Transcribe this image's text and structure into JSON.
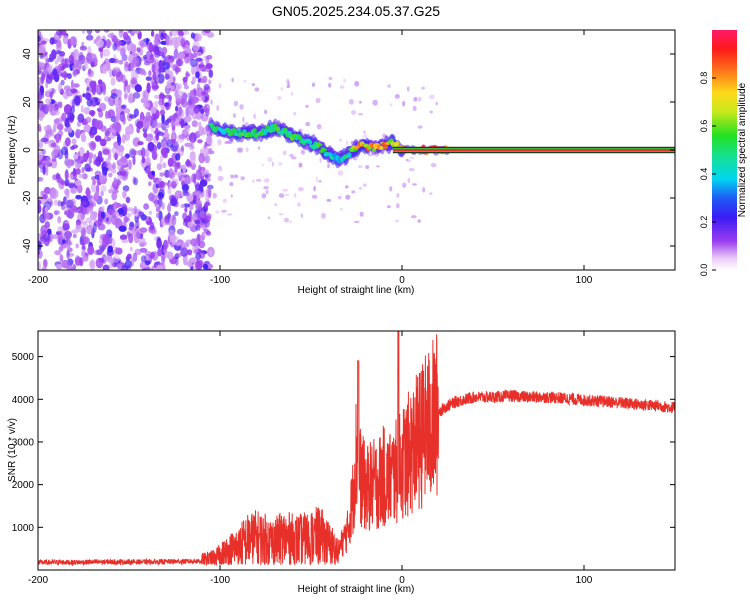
{
  "figure": {
    "title": "GN05.2025.234.05.37.G25"
  },
  "chart_data": [
    {
      "type": "heatmap",
      "xlabel": "Height of straight line (km)",
      "ylabel": "Frequency (Hz)",
      "xlim": [
        -200,
        150
      ],
      "ylim": [
        -50,
        50
      ],
      "x_ticks": [
        "-200",
        "-100",
        "0",
        "100"
      ],
      "y_ticks": [
        "40",
        "20",
        "0",
        "-20",
        "-40"
      ],
      "x_tick_values": [
        -200,
        -100,
        0,
        100
      ],
      "y_tick_values": [
        40,
        20,
        0,
        -20,
        -40
      ],
      "colorbar": {
        "label": "Normalized spectral amplitude",
        "ticks": [
          "0.0",
          "0.2",
          "0.4",
          "0.6",
          "0.8"
        ],
        "tick_values": [
          0.0,
          0.2,
          0.4,
          0.6,
          0.8
        ],
        "range": [
          0,
          1
        ]
      },
      "noise_region_x": [
        -200,
        -105
      ],
      "signal_track": {
        "x": [
          -105,
          -100,
          -90,
          -80,
          -75,
          -70,
          -65,
          -60,
          -55,
          -50,
          -45,
          -40,
          -35,
          -30,
          -25,
          -20,
          -15,
          -10,
          -5,
          0,
          10,
          20,
          150
        ],
        "freq_hz": [
          10,
          8,
          7,
          7,
          8,
          9,
          8,
          6,
          4,
          3,
          1,
          -2,
          -4,
          -2,
          1,
          2,
          1,
          2,
          3,
          0,
          0,
          0,
          0
        ],
        "amplitude": [
          0.5,
          0.55,
          0.55,
          0.6,
          0.55,
          0.6,
          0.55,
          0.6,
          0.55,
          0.5,
          0.6,
          0.5,
          0.45,
          0.5,
          0.8,
          0.85,
          0.8,
          0.85,
          0.8,
          0.85,
          0.95,
          1.0,
          1.0
        ]
      }
    },
    {
      "type": "line",
      "xlabel": "Height of straight line (km)",
      "ylabel": "SNR (10 * v/v)",
      "xlim": [
        -200,
        150
      ],
      "ylim": [
        0,
        5600
      ],
      "x_ticks": [
        "-200",
        "-100",
        "0",
        "100"
      ],
      "y_ticks": [
        "1000",
        "2000",
        "3000",
        "4000",
        "5000"
      ],
      "x_tick_values": [
        -200,
        -100,
        0,
        100
      ],
      "y_tick_values": [
        1000,
        2000,
        3000,
        4000,
        5000
      ],
      "series": [
        {
          "color": "#e8302a",
          "x": [
            -200,
            -180,
            -160,
            -140,
            -120,
            -110,
            -105,
            -100,
            -95,
            -90,
            -85,
            -80,
            -75,
            -70,
            -65,
            -60,
            -55,
            -50,
            -45,
            -40,
            -35,
            -30,
            -27,
            -25,
            -23,
            -20,
            -15,
            -12,
            -10,
            -8,
            -5,
            -3,
            -1,
            0,
            2,
            5,
            10,
            15,
            20,
            25,
            30,
            35,
            40,
            50,
            60,
            70,
            80,
            90,
            100,
            110,
            120,
            130,
            140,
            150
          ],
          "y": [
            180,
            180,
            190,
            190,
            200,
            210,
            240,
            320,
            450,
            550,
            700,
            750,
            700,
            650,
            750,
            700,
            700,
            750,
            800,
            600,
            450,
            900,
            1700,
            2800,
            2200,
            1900,
            2000,
            2100,
            2200,
            2100,
            2200,
            2300,
            2400,
            2500,
            2600,
            2800,
            3100,
            3400,
            3700,
            3850,
            3950,
            4000,
            4050,
            4050,
            4080,
            4050,
            4050,
            4020,
            3980,
            3950,
            3920,
            3880,
            3850,
            3800
          ]
        }
      ],
      "spikes": [
        {
          "x": -24,
          "y": 4900
        },
        {
          "x": -2,
          "y": 5600
        }
      ]
    }
  ]
}
